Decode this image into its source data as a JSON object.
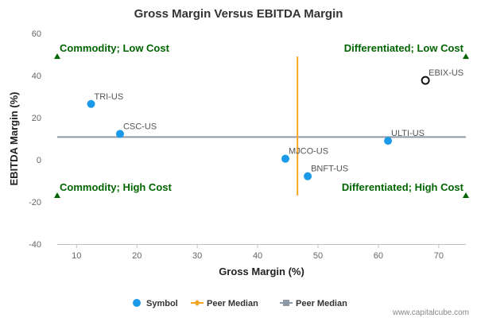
{
  "chart_data": {
    "type": "scatter",
    "title": "Gross Margin Versus EBITDA Margin",
    "xlabel": "Gross Margin (%)",
    "ylabel": "EBITDA Margin (%)",
    "xlim": [
      6.8,
      74.5
    ],
    "ylim": [
      -40,
      60
    ],
    "x_ticks": [
      10,
      20,
      30,
      40,
      50,
      60,
      70
    ],
    "y_ticks": [
      -40,
      -20,
      0,
      20,
      40,
      60
    ],
    "grid": false,
    "points": [
      {
        "label": "TRI-US",
        "x": 12.4,
        "y": 26.5,
        "highlight": false
      },
      {
        "label": "CSC-US",
        "x": 17.2,
        "y": 12.3,
        "highlight": false
      },
      {
        "label": "MJCO-US",
        "x": 44.6,
        "y": 0.5,
        "highlight": false
      },
      {
        "label": "BNFT-US",
        "x": 48.3,
        "y": -7.8,
        "highlight": false
      },
      {
        "label": "ULTI-US",
        "x": 61.6,
        "y": 9.0,
        "highlight": false
      },
      {
        "label": "EBIX-US",
        "x": 67.8,
        "y": 37.7,
        "highlight": true
      }
    ],
    "peer_median_x": {
      "value": 46.6,
      "y_range": [
        -17,
        49
      ]
    },
    "peer_median_y": {
      "value": 10.8,
      "x_range": [
        6.8,
        74.5
      ]
    },
    "quadrants": [
      {
        "text": "Commodity; Low Cost",
        "x": 6.8,
        "y": 49,
        "marker": "up"
      },
      {
        "text": "Differentiated; Low Cost",
        "x": 74.5,
        "y": 49,
        "marker": "up"
      },
      {
        "text": "Commodity; High Cost",
        "x": 6.8,
        "y": -17,
        "marker": "up"
      },
      {
        "text": "Differentiated; High Cost",
        "x": 74.5,
        "y": -17,
        "marker": "up"
      }
    ],
    "legend": {
      "position": "bottom",
      "items": [
        {
          "name": "Symbol",
          "marker": "circle",
          "color": "#1a9ae8"
        },
        {
          "name": "Peer Median",
          "marker": "diamond-line",
          "color": "#f5a623"
        },
        {
          "name": "Peer Median",
          "marker": "square-line",
          "color": "#9099a8"
        }
      ]
    },
    "colors": {
      "point": "#1a9ae8",
      "highlight_stroke": "#111111",
      "median_x": "#f5a623",
      "median_y": "#9099a8",
      "quadrant": "#006400"
    }
  },
  "credit": "www.capitalcube.com"
}
